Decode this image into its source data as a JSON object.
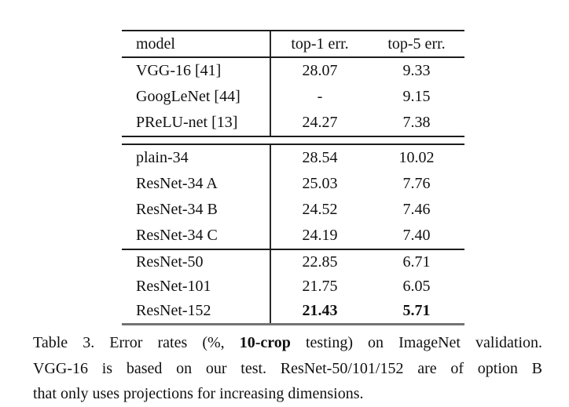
{
  "table": {
    "header": {
      "model": "model",
      "top1": "top-1 err.",
      "top5": "top-5 err."
    },
    "sections": [
      {
        "rows": [
          {
            "model": "VGG-16 [41]",
            "top1": "28.07",
            "top5": "9.33"
          },
          {
            "model": "GoogLeNet [44]",
            "top1": "-",
            "top5": "9.15"
          },
          {
            "model": "PReLU-net [13]",
            "top1": "24.27",
            "top5": "7.38"
          }
        ]
      },
      {
        "rows": [
          {
            "model": "plain-34",
            "top1": "28.54",
            "top5": "10.02"
          },
          {
            "model": "ResNet-34 A",
            "top1": "25.03",
            "top5": "7.76"
          },
          {
            "model": "ResNet-34 B",
            "top1": "24.52",
            "top5": "7.46"
          },
          {
            "model": "ResNet-34 C",
            "top1": "24.19",
            "top5": "7.40"
          }
        ]
      },
      {
        "rows": [
          {
            "model": "ResNet-50",
            "top1": "22.85",
            "top5": "6.71"
          },
          {
            "model": "ResNet-101",
            "top1": "21.75",
            "top5": "6.05"
          },
          {
            "model": "ResNet-152",
            "top1": "21.43",
            "top5": "5.71"
          }
        ]
      }
    ]
  },
  "caption": {
    "line1_pre": "Table 3. Error rates (%, ",
    "line1_bold": "10-crop",
    "line1_post": " testing) on ImageNet validation.",
    "line2": "VGG-16 is based on our test. ResNet-50/101/152 are of option B",
    "line3": "that only uses projections for increasing dimensions."
  },
  "colors": {
    "text": "#111111",
    "rule": "#1c1c1c",
    "bottom_rule": "#737373",
    "background": "#ffffff"
  }
}
